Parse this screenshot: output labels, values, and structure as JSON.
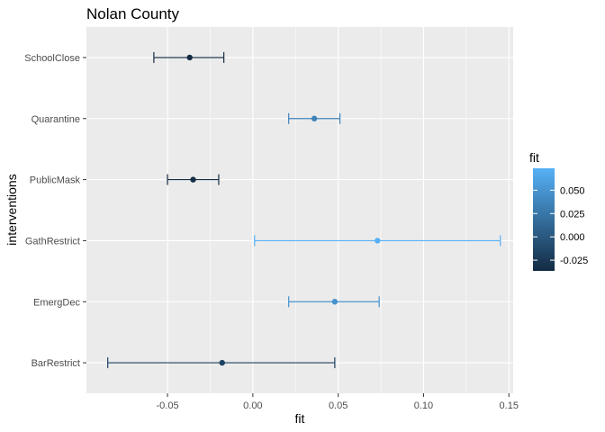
{
  "chart_data": {
    "type": "scatter",
    "title": "Nolan County",
    "xlabel": "fit",
    "ylabel": "interventions",
    "xlim": [
      -0.0975,
      0.1525
    ],
    "xticks": [
      -0.05,
      0.0,
      0.05,
      0.1,
      0.15
    ],
    "xtick_labels": [
      "-0.05",
      "0.00",
      "0.05",
      "0.10",
      "0.15"
    ],
    "grid": true,
    "legend": {
      "title": "fit",
      "placement": "right",
      "range": [
        -0.0365,
        0.0735
      ],
      "ticks": [
        -0.025,
        0.0,
        0.025,
        0.05
      ],
      "tick_labels": [
        "-0.025",
        "0.000",
        "0.025",
        "0.050"
      ],
      "low_color": "#132B43",
      "high_color": "#56B1F7"
    },
    "points": [
      {
        "category": "SchoolClose",
        "fit": -0.037,
        "lower": -0.058,
        "upper": -0.017
      },
      {
        "category": "Quarantine",
        "fit": 0.036,
        "lower": 0.021,
        "upper": 0.051
      },
      {
        "category": "PublicMask",
        "fit": -0.035,
        "lower": -0.05,
        "upper": -0.02
      },
      {
        "category": "GathRestrict",
        "fit": 0.073,
        "lower": 0.001,
        "upper": 0.145
      },
      {
        "category": "EmergDec",
        "fit": 0.048,
        "lower": 0.021,
        "upper": 0.074
      },
      {
        "category": "BarRestrict",
        "fit": -0.018,
        "lower": -0.085,
        "upper": 0.048
      }
    ]
  }
}
